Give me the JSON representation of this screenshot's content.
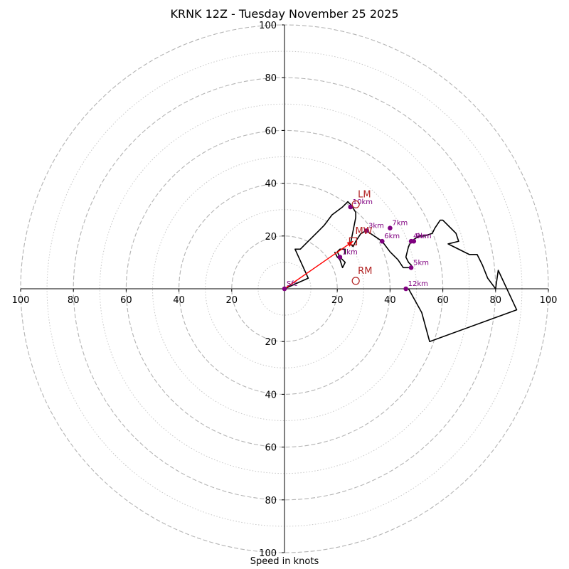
{
  "chart_data": {
    "type": "line",
    "title": "KRNK 12Z - Tuesday November 25 2025",
    "xlabel": "Speed in knots",
    "ylabel": "",
    "xlim": [
      -100,
      100
    ],
    "ylim": [
      -100,
      100
    ],
    "ring_major": [
      20,
      40,
      60,
      80,
      100
    ],
    "ring_minor": [
      10,
      30,
      50,
      70,
      90
    ],
    "ticks": {
      "x": [
        {
          "value": -100,
          "label": "100"
        },
        {
          "value": -80,
          "label": "80"
        },
        {
          "value": -60,
          "label": "60"
        },
        {
          "value": -40,
          "label": "40"
        },
        {
          "value": -20,
          "label": "20"
        },
        {
          "value": 20,
          "label": "20"
        },
        {
          "value": 40,
          "label": "40"
        },
        {
          "value": 60,
          "label": "60"
        },
        {
          "value": 80,
          "label": "80"
        },
        {
          "value": 100,
          "label": "100"
        }
      ],
      "y": [
        {
          "value": 100,
          "label": "100"
        },
        {
          "value": 80,
          "label": "80"
        },
        {
          "value": 60,
          "label": "60"
        },
        {
          "value": 40,
          "label": "40"
        },
        {
          "value": 20,
          "label": "20"
        },
        {
          "value": -20,
          "label": "20"
        },
        {
          "value": -40,
          "label": "40"
        },
        {
          "value": -60,
          "label": "60"
        },
        {
          "value": -80,
          "label": "80"
        },
        {
          "value": -100,
          "label": "100"
        }
      ]
    },
    "hodograph": {
      "color": "#000000",
      "points": [
        [
          0,
          0
        ],
        [
          9,
          4
        ],
        [
          4,
          15
        ],
        [
          6,
          15
        ],
        [
          9,
          18
        ],
        [
          13,
          22
        ],
        [
          15,
          24
        ],
        [
          18,
          28
        ],
        [
          22,
          31
        ],
        [
          24,
          33
        ],
        [
          25,
          32
        ],
        [
          27,
          29
        ],
        [
          27,
          27
        ],
        [
          26,
          22
        ],
        [
          25,
          17
        ],
        [
          26,
          16
        ],
        [
          27,
          18
        ],
        [
          29,
          21
        ],
        [
          31,
          22
        ],
        [
          34,
          20
        ],
        [
          37,
          18
        ],
        [
          40,
          14
        ],
        [
          43,
          11
        ],
        [
          45,
          8
        ],
        [
          48,
          8
        ],
        [
          48,
          9
        ],
        [
          47,
          10
        ],
        [
          46,
          12
        ],
        [
          47,
          16
        ],
        [
          48,
          18
        ],
        [
          51,
          20
        ],
        [
          53,
          20
        ],
        [
          56,
          21
        ],
        [
          57,
          23
        ],
        [
          59,
          26
        ],
        [
          60,
          26
        ],
        [
          65,
          21
        ],
        [
          66,
          18
        ],
        [
          62,
          17
        ],
        [
          70,
          13
        ],
        [
          73,
          13
        ],
        [
          75,
          9
        ],
        [
          77,
          4
        ],
        [
          80,
          0
        ],
        [
          81,
          7
        ],
        [
          88,
          -8
        ],
        [
          55,
          -20
        ],
        [
          52,
          -9
        ],
        [
          47,
          0
        ]
      ],
      "inner_loop": [
        [
          23,
          13
        ],
        [
          23,
          15
        ],
        [
          21,
          15
        ],
        [
          20,
          14
        ],
        [
          21,
          12
        ],
        [
          23,
          10
        ],
        [
          22,
          8
        ],
        [
          21,
          11
        ],
        [
          20,
          12
        ],
        [
          19,
          14
        ]
      ]
    },
    "height_markers": {
      "color": "#800080",
      "points": [
        {
          "label": "Sfc",
          "u": 0,
          "v": 0
        },
        {
          "label": "1km",
          "u": 21,
          "v": 12
        },
        {
          "label": "3km",
          "u": 31,
          "v": 22
        },
        {
          "label": "4km",
          "u": 48,
          "v": 18
        },
        {
          "label": "5km",
          "u": 48,
          "v": 8
        },
        {
          "label": "6km",
          "u": 37,
          "v": 18
        },
        {
          "label": "7km",
          "u": 40,
          "v": 23
        },
        {
          "label": "9km",
          "u": 49,
          "v": 18
        },
        {
          "label": "10km",
          "u": 25,
          "v": 31
        },
        {
          "label": "12km",
          "u": 46,
          "v": 0
        }
      ]
    },
    "storm_motion": {
      "color": "#b22222",
      "points": [
        {
          "label": "LM",
          "u": 27,
          "v": 32,
          "marker": "circle"
        },
        {
          "label": "MW",
          "u": 26,
          "v": 18,
          "marker": "square"
        },
        {
          "label": "RM",
          "u": 27,
          "v": 3,
          "marker": "circle"
        }
      ]
    },
    "shear_vector": {
      "color": "#ff0000",
      "from": [
        0,
        0
      ],
      "to": [
        26,
        18
      ]
    }
  }
}
